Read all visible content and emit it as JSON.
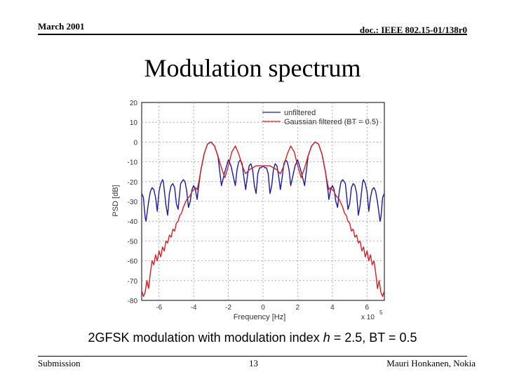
{
  "header": {
    "date": "March 2001",
    "doc_id": "doc.: IEEE 802.15-01/138r0"
  },
  "slide": {
    "title": "Modulation spectrum",
    "caption": {
      "prefix": "2GFSK modulation with modulation index ",
      "var": "h",
      "suffix": " = 2.5, BT = 0.5"
    }
  },
  "footer": {
    "left": "Submission",
    "page": "13",
    "author": "Mauri Honkanen, Nokia"
  },
  "colors": {
    "unfiltered": "#1a1aa0",
    "filtered": "#d42020",
    "grid": "#9a9a9a"
  },
  "chart_data": {
    "type": "line",
    "xlabel": "Frequency [Hz]",
    "x_exponent_label": "x 10",
    "x_exponent": "5",
    "ylabel": "PSD [dB]",
    "xlim": [
      -7,
      7
    ],
    "ylim": [
      -80,
      20
    ],
    "xticks": [
      -6,
      -4,
      -2,
      0,
      2,
      4,
      6
    ],
    "yticks": [
      20,
      10,
      0,
      -10,
      -20,
      -30,
      -40,
      -50,
      -60,
      -70,
      -80
    ],
    "grid": true,
    "legend_position": "top-right",
    "series": [
      {
        "name": "unfiltered",
        "color_key": "unfiltered",
        "x": [
          -7,
          -6.9,
          -6.8,
          -6.75,
          -6.6,
          -6.5,
          -6.4,
          -6.3,
          -6.2,
          -6.1,
          -6.0,
          -5.9,
          -5.8,
          -5.75,
          -5.6,
          -5.5,
          -5.4,
          -5.3,
          -5.2,
          -5.1,
          -5.0,
          -4.9,
          -4.8,
          -4.75,
          -4.6,
          -4.5,
          -4.4,
          -4.3,
          -4.2,
          -4.1,
          -4.0,
          -3.9,
          -3.8,
          -3.75,
          -3.6,
          -3.4,
          -3.2,
          -3.0,
          -2.8,
          -2.6,
          -2.4,
          -2.2,
          -2.0,
          -1.85,
          -1.7,
          -1.6,
          -1.5,
          -1.4,
          -1.3,
          -1.2,
          -1.1,
          -1.0,
          -0.9,
          -0.8,
          -0.7,
          -0.6,
          -0.5,
          -0.4,
          -0.3,
          -0.2,
          -0.1,
          0,
          0.1,
          0.2,
          0.3,
          0.4,
          0.5,
          0.6,
          0.7,
          0.8,
          0.9,
          1.0,
          1.1,
          1.2,
          1.3,
          1.4,
          1.5,
          1.6,
          1.7,
          1.85,
          2.0,
          2.2,
          2.4,
          2.6,
          2.8,
          3.0,
          3.2,
          3.4,
          3.6,
          3.75,
          3.8,
          3.9,
          4.0,
          4.1,
          4.2,
          4.3,
          4.4,
          4.5,
          4.6,
          4.75,
          4.8,
          4.9,
          5.0,
          5.1,
          5.2,
          5.3,
          5.4,
          5.5,
          5.6,
          5.75,
          5.8,
          5.9,
          6.0,
          6.1,
          6.2,
          6.3,
          6.4,
          6.5,
          6.6,
          6.75,
          6.8,
          6.9,
          7.0
        ],
        "y": [
          -26,
          -28,
          -38,
          -40,
          -30,
          -25,
          -23,
          -24,
          -28,
          -35,
          -25,
          -21,
          -19,
          -20,
          -32,
          -37,
          -26,
          -22,
          -21,
          -23,
          -31,
          -34,
          -25,
          -21,
          -19,
          -20,
          -25,
          -33,
          -30,
          -24,
          -22,
          -24,
          -29,
          -25,
          -15,
          -6,
          -1,
          0,
          -2,
          -7,
          -22,
          -15,
          -9,
          -12,
          -18,
          -22,
          -14,
          -10,
          -9,
          -11,
          -18,
          -24,
          -17,
          -12,
          -11,
          -14,
          -22,
          -26,
          -16,
          -13,
          -13,
          -12,
          -13,
          -13,
          -16,
          -26,
          -22,
          -14,
          -11,
          -12,
          -17,
          -24,
          -18,
          -11,
          -9,
          -10,
          -14,
          -22,
          -18,
          -12,
          -9,
          -15,
          -22,
          -7,
          -2,
          0,
          -1,
          -6,
          -15,
          -25,
          -29,
          -24,
          -22,
          -24,
          -30,
          -33,
          -25,
          -20,
          -19,
          -21,
          -25,
          -34,
          -31,
          -23,
          -21,
          -22,
          -26,
          -37,
          -32,
          -20,
          -19,
          -21,
          -25,
          -35,
          -28,
          -24,
          -23,
          -25,
          -30,
          -40,
          -38,
          -28,
          -26
        ]
      },
      {
        "name": "Gaussian filtered (BT = 0.5)",
        "color_key": "filtered",
        "x": [
          -7,
          -6.9,
          -6.8,
          -6.7,
          -6.6,
          -6.5,
          -6.4,
          -6.3,
          -6.2,
          -6.1,
          -6.0,
          -5.9,
          -5.8,
          -5.7,
          -5.6,
          -5.5,
          -5.4,
          -5.3,
          -5.2,
          -5.1,
          -5.0,
          -4.9,
          -4.8,
          -4.7,
          -4.6,
          -4.5,
          -4.4,
          -4.3,
          -4.2,
          -4.1,
          -4.0,
          -3.9,
          -3.8,
          -3.7,
          -3.6,
          -3.4,
          -3.2,
          -3.0,
          -2.8,
          -2.6,
          -2.4,
          -2.2,
          -2.0,
          -1.8,
          -1.6,
          -1.4,
          -1.2,
          -1.0,
          -0.8,
          -0.6,
          -0.4,
          -0.2,
          0,
          0.2,
          0.4,
          0.6,
          0.8,
          1.0,
          1.2,
          1.4,
          1.6,
          1.8,
          2.0,
          2.2,
          2.4,
          2.6,
          2.8,
          3.0,
          3.2,
          3.4,
          3.6,
          3.7,
          3.8,
          3.9,
          4.0,
          4.1,
          4.2,
          4.3,
          4.4,
          4.5,
          4.6,
          4.7,
          4.8,
          4.9,
          5.0,
          5.1,
          5.2,
          5.3,
          5.4,
          5.5,
          5.6,
          5.7,
          5.8,
          5.9,
          6.0,
          6.1,
          6.2,
          6.3,
          6.4,
          6.5,
          6.6,
          6.7,
          6.8,
          6.9,
          7.0
        ],
        "y": [
          -75,
          -78,
          -76,
          -70,
          -74,
          -66,
          -60,
          -62,
          -57,
          -60,
          -55,
          -58,
          -53,
          -55,
          -50,
          -51,
          -47,
          -48,
          -44,
          -45,
          -41,
          -40,
          -37,
          -36,
          -33,
          -31,
          -29,
          -28,
          -27,
          -25,
          -24,
          -23,
          -24,
          -20,
          -15,
          -6,
          -1,
          0,
          -2,
          -7,
          -13,
          -18,
          -12,
          -5,
          -2,
          -6,
          -12,
          -16,
          -14,
          -13,
          -12,
          -12,
          -12,
          -12,
          -12,
          -13,
          -14,
          -16,
          -12,
          -6,
          -2,
          -5,
          -12,
          -18,
          -13,
          -7,
          -2,
          0,
          -1,
          -6,
          -15,
          -20,
          -24,
          -23,
          -24,
          -25,
          -27,
          -28,
          -29,
          -31,
          -33,
          -36,
          -37,
          -40,
          -41,
          -45,
          -44,
          -48,
          -47,
          -51,
          -50,
          -55,
          -53,
          -58,
          -55,
          -60,
          -57,
          -62,
          -60,
          -66,
          -74,
          -70,
          -76,
          -78,
          -75
        ]
      }
    ]
  }
}
